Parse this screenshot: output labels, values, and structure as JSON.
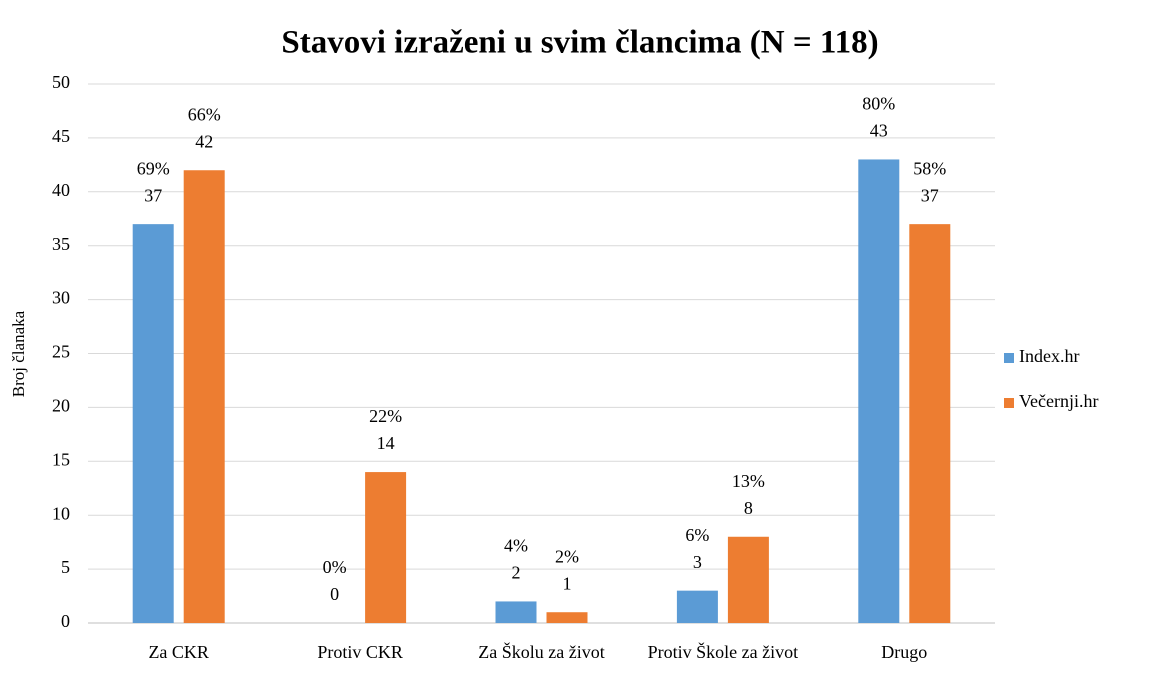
{
  "chart_data": {
    "type": "bar",
    "title": "Stavovi izraženi u svim člancima (N = 118)",
    "ylabel": "Broj članaka",
    "categories": [
      "Za CKR",
      "Protiv CKR",
      "Za Školu za život",
      "Protiv Škole za život",
      "Drugo"
    ],
    "series": [
      {
        "name": "Index.hr",
        "color": "#5b9bd5",
        "values": [
          37,
          0,
          2,
          3,
          43
        ],
        "share_labels": [
          "69%",
          "0%",
          "4%",
          "6%",
          "80%"
        ]
      },
      {
        "name": "Večernji.hr",
        "color": "#ed7d31",
        "values": [
          42,
          14,
          1,
          8,
          37
        ],
        "share_labels": [
          "66%",
          "22%",
          "2%",
          "13%",
          "58%"
        ]
      }
    ],
    "ylim": [
      0,
      50
    ],
    "yticks": [
      0,
      5,
      10,
      15,
      20,
      25,
      30,
      35,
      40,
      45,
      50
    ],
    "grid": true,
    "legend": "right"
  }
}
